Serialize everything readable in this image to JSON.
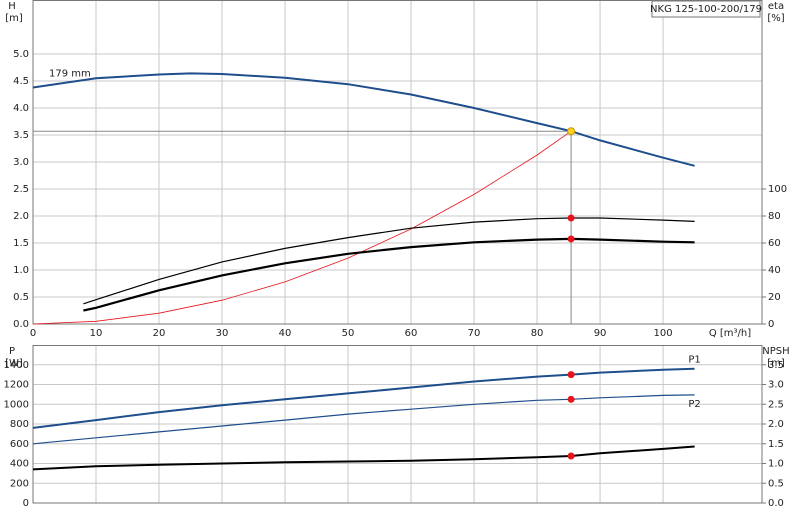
{
  "chart_data": [
    {
      "type": "line",
      "title": "NKG 125-100-200/179",
      "xlabel": "Q [m³/h]",
      "ylabel": "H",
      "ylabel_unit": "[m]",
      "y2label": "eta",
      "y2label_unit": "[%]",
      "xlim": [
        0,
        115.7
      ],
      "xticks": [
        0,
        10,
        20,
        30,
        40,
        50,
        60,
        70,
        80,
        90,
        100
      ],
      "ylim": [
        0,
        6.0
      ],
      "yticks": [
        {
          "value": 0,
          "label": "0.0"
        },
        {
          "value": 0.5,
          "label": "0.5"
        },
        {
          "value": 1,
          "label": "1.0"
        },
        {
          "value": 1.5,
          "label": "1.5"
        },
        {
          "value": 2,
          "label": "2.0"
        },
        {
          "value": 2.5,
          "label": "2.5"
        },
        {
          "value": 3,
          "label": "3.0"
        },
        {
          "value": 3.5,
          "label": "3.5"
        },
        {
          "value": 4,
          "label": "4.0"
        },
        {
          "value": 4.5,
          "label": "4.5"
        },
        {
          "value": 5,
          "label": "5.0"
        }
      ],
      "y2lim": [
        0,
        240
      ],
      "y2ticks": [
        0,
        20,
        40,
        60,
        80,
        100
      ],
      "grid": true,
      "crosshair": true,
      "series": [
        {
          "name": "179 mm",
          "color": "#1f4e8c",
          "width": 2,
          "x": [
            0,
            10,
            20,
            25,
            30,
            40,
            50,
            60,
            70,
            80,
            85.4,
            90,
            100,
            105
          ],
          "values": [
            4.38,
            4.55,
            4.62,
            4.64,
            4.63,
            4.56,
            4.44,
            4.25,
            4.0,
            3.72,
            3.57,
            3.4,
            3.08,
            2.93
          ]
        },
        {
          "color": "#e8141b",
          "width": 0.8,
          "x": [
            0,
            10,
            20,
            30,
            40,
            50,
            60,
            70,
            80,
            85.4
          ],
          "values": [
            0,
            0.05,
            0.2,
            0.44,
            0.78,
            1.22,
            1.76,
            2.4,
            3.13,
            3.57
          ]
        },
        {
          "color": "#000000",
          "width": 1.2,
          "axis": "y2",
          "x": [
            8,
            10,
            20,
            30,
            40,
            50,
            60,
            70,
            80,
            85.4,
            90,
            100,
            105
          ],
          "values": [
            15,
            18,
            33,
            46,
            56,
            64,
            71,
            75.5,
            78,
            78.5,
            78.5,
            77,
            76
          ]
        },
        {
          "color": "#000000",
          "width": 2.2,
          "axis": "y2",
          "x": [
            8,
            10,
            20,
            30,
            40,
            50,
            60,
            70,
            80,
            85.4,
            90,
            100,
            105
          ],
          "values": [
            10,
            12,
            25,
            36,
            45,
            52,
            57,
            60.5,
            62.5,
            63,
            62.5,
            61,
            60.5
          ]
        }
      ],
      "points": [
        {
          "x": 85.4,
          "y": 3.57,
          "color": "#ffd21f"
        },
        {
          "x": 85.4,
          "y": 78.5,
          "axis": "y2",
          "color": "#e8141b"
        },
        {
          "x": 85.4,
          "y": 63,
          "axis": "y2",
          "color": "#e8141b"
        }
      ]
    },
    {
      "type": "line",
      "ylabel": "P",
      "ylabel_unit": "[W]",
      "y2label": "NPSH",
      "y2label_unit": "[m]",
      "xlim": [
        0,
        115.7
      ],
      "xgrid": [
        0,
        10,
        20,
        30,
        40,
        50,
        60,
        70,
        80,
        90,
        100
      ],
      "ylim": [
        0,
        1600
      ],
      "yticks": [
        0,
        200,
        400,
        600,
        800,
        1000,
        1200,
        1400
      ],
      "y2lim": [
        0,
        4.0
      ],
      "y2ticks": [
        {
          "value": 0,
          "label": "0.0"
        },
        {
          "value": 0.5,
          "label": "0.5"
        },
        {
          "value": 1,
          "label": "1.0"
        },
        {
          "value": 1.5,
          "label": "1.5"
        },
        {
          "value": 2,
          "label": "2.0"
        },
        {
          "value": 2.5,
          "label": "2.5"
        },
        {
          "value": 3,
          "label": "3.0"
        },
        {
          "value": 3.5,
          "label": "3.5"
        }
      ],
      "grid": true,
      "series": [
        {
          "name": "P1",
          "color": "#1f4e8c",
          "width": 2,
          "x": [
            0,
            10,
            20,
            30,
            40,
            50,
            60,
            70,
            80,
            85.4,
            90,
            100,
            105
          ],
          "values": [
            760,
            840,
            920,
            990,
            1050,
            1110,
            1170,
            1230,
            1280,
            1300,
            1320,
            1350,
            1360
          ]
        },
        {
          "name": "P2",
          "color": "#1f4e8c",
          "width": 1.2,
          "x": [
            0,
            10,
            20,
            30,
            40,
            50,
            60,
            70,
            80,
            85.4,
            90,
            100,
            105
          ],
          "values": [
            600,
            660,
            720,
            780,
            840,
            900,
            950,
            1000,
            1040,
            1050,
            1065,
            1090,
            1095
          ]
        },
        {
          "color": "#000000",
          "width": 2,
          "axis": "y2",
          "x": [
            0,
            10,
            20,
            30,
            40,
            50,
            60,
            70,
            80,
            85.4,
            90,
            100,
            105
          ],
          "values": [
            0.85,
            0.93,
            0.97,
            1.0,
            1.03,
            1.05,
            1.07,
            1.11,
            1.16,
            1.19,
            1.26,
            1.37,
            1.43
          ]
        }
      ],
      "points": [
        {
          "x": 85.4,
          "y": 1300,
          "color": "#e8141b"
        },
        {
          "x": 85.4,
          "y": 1050,
          "color": "#e8141b"
        },
        {
          "x": 85.4,
          "y": 1.19,
          "axis": "y2",
          "color": "#e8141b"
        }
      ]
    }
  ]
}
